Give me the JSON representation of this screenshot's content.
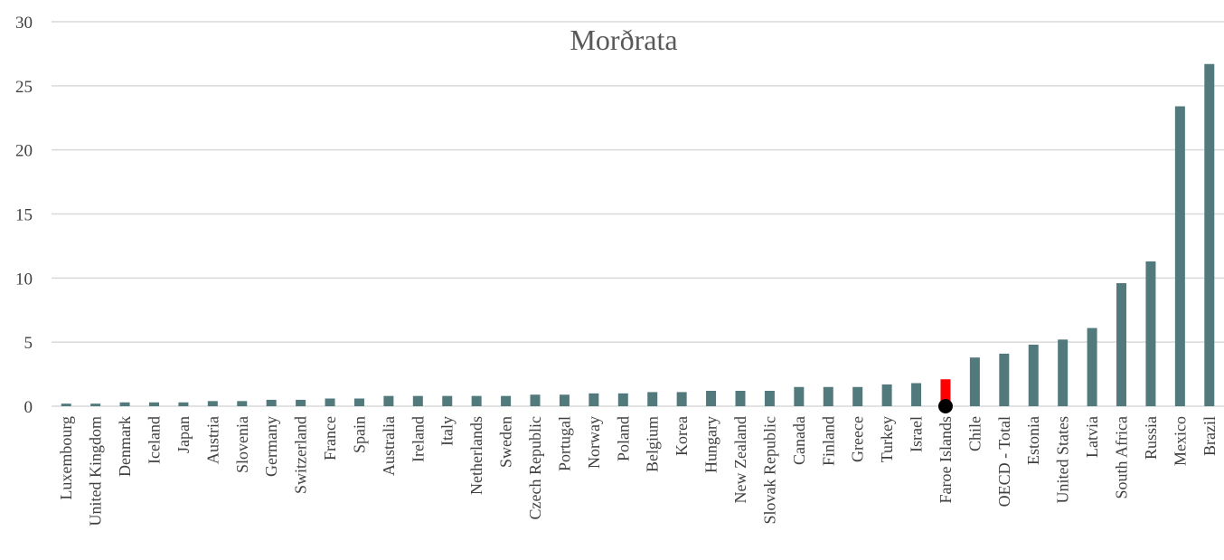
{
  "chart_data": {
    "type": "bar",
    "title": "Morðrata",
    "xlabel": "",
    "ylabel": "",
    "ylim": [
      0,
      30
    ],
    "yticks": [
      0,
      5,
      10,
      15,
      20,
      25,
      30
    ],
    "grid": true,
    "legend": "none",
    "bar_color": "#527A7D",
    "highlight_color": "#FF0000",
    "marker_color": "#000000",
    "highlight_category": "Faroe Islands",
    "categories": [
      "Luxembourg",
      "United Kingdom",
      "Denmark",
      "Iceland",
      "Japan",
      "Austria",
      "Slovenia",
      "Germany",
      "Switzerland",
      "France",
      "Spain",
      "Australia",
      "Ireland",
      "Italy",
      "Netherlands",
      "Sweden",
      "Czech Republic",
      "Portugal",
      "Norway",
      "Poland",
      "Belgium",
      "Korea",
      "Hungary",
      "New Zealand",
      "Slovak Republic",
      "Canada",
      "Finland",
      "Greece",
      "Turkey",
      "Israel",
      "Faroe Islands",
      "Chile",
      "OECD - Total",
      "Estonia",
      "United States",
      "Latvia",
      "South Africa",
      "Russia",
      "Mexico",
      "Brazil"
    ],
    "values": [
      0.2,
      0.2,
      0.3,
      0.3,
      0.3,
      0.4,
      0.4,
      0.5,
      0.5,
      0.6,
      0.6,
      0.8,
      0.8,
      0.8,
      0.8,
      0.8,
      0.9,
      0.9,
      1.0,
      1.0,
      1.1,
      1.1,
      1.2,
      1.2,
      1.2,
      1.5,
      1.5,
      1.5,
      1.7,
      1.8,
      2.1,
      3.8,
      4.1,
      4.8,
      5.2,
      6.1,
      9.6,
      11.3,
      23.4,
      26.7
    ],
    "marker_value": 0
  }
}
